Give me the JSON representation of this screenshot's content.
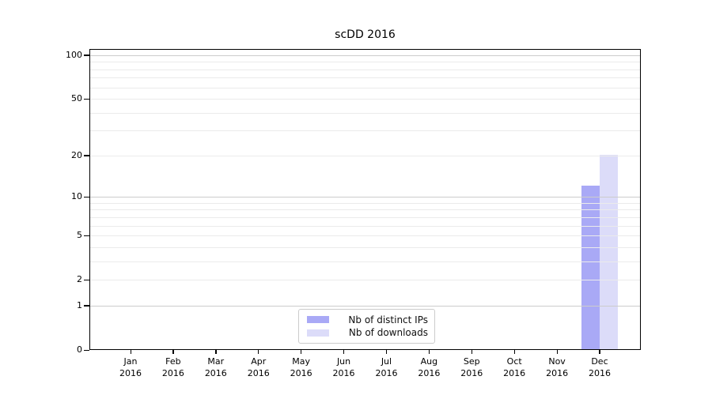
{
  "figure": {
    "background": "#ffffff",
    "title": "scDD 2016"
  },
  "chart_data": {
    "type": "bar",
    "title": "scDD 2016",
    "categories": [
      "Jan 2016",
      "Feb 2016",
      "Mar 2016",
      "Apr 2016",
      "May 2016",
      "Jun 2016",
      "Jul 2016",
      "Aug 2016",
      "Sep 2016",
      "Oct 2016",
      "Nov 2016",
      "Dec 2016"
    ],
    "x_tick_labels": [
      [
        "Jan",
        "2016"
      ],
      [
        "Feb",
        "2016"
      ],
      [
        "Mar",
        "2016"
      ],
      [
        "Apr",
        "2016"
      ],
      [
        "May",
        "2016"
      ],
      [
        "Jun",
        "2016"
      ],
      [
        "Jul",
        "2016"
      ],
      [
        "Aug",
        "2016"
      ],
      [
        "Sep",
        "2016"
      ],
      [
        "Oct",
        "2016"
      ],
      [
        "Nov",
        "2016"
      ],
      [
        "Dec",
        "2016"
      ]
    ],
    "series": [
      {
        "name": "Nb of distinct IPs",
        "color": "#a9a9f6",
        "values": [
          0,
          0,
          0,
          0,
          0,
          0,
          0,
          0,
          0,
          0,
          0,
          12
        ]
      },
      {
        "name": "Nb of downloads",
        "color": "#dcdcf9",
        "values": [
          0,
          0,
          0,
          0,
          0,
          0,
          0,
          0,
          0,
          0,
          0,
          20
        ]
      }
    ],
    "y_axis": {
      "scale": "log10(value+1)",
      "tick_values": [
        0,
        1,
        2,
        5,
        10,
        20,
        50,
        100
      ],
      "tick_labels": [
        "0",
        "1",
        "2",
        "5",
        "10",
        "20",
        "50",
        "100"
      ],
      "range": [
        0,
        110
      ]
    },
    "grid": {
      "major_values": [
        1,
        10,
        100
      ],
      "minor_values": [
        2,
        3,
        4,
        5,
        6,
        7,
        8,
        9,
        20,
        30,
        40,
        50,
        60,
        70,
        80,
        90
      ],
      "major_color": "#cccccc",
      "minor_color": "#ebebeb"
    },
    "legend": {
      "position": "lower center",
      "entries": [
        "Nb of distinct IPs",
        "Nb of downloads"
      ]
    }
  }
}
